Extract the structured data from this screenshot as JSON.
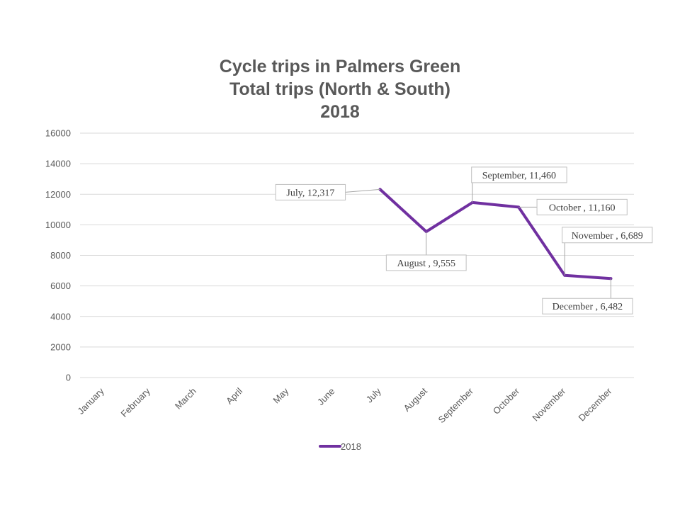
{
  "title_lines": [
    "Cycle trips in Palmers Green",
    "Total trips (North & South)",
    "2018"
  ],
  "chart_data": {
    "type": "line",
    "title": "Cycle trips in Palmers Green Total trips (North & South) 2018",
    "categories": [
      "January",
      "February",
      "March",
      "April",
      "May",
      "June",
      "July",
      "August",
      "September",
      "October",
      "November",
      "December"
    ],
    "series": [
      {
        "name": "2018",
        "color": "#7030a0",
        "values": [
          null,
          null,
          null,
          null,
          null,
          null,
          12317,
          9555,
          11460,
          11160,
          6689,
          6482
        ]
      }
    ],
    "data_labels": [
      "July, 12,317",
      "August , 9,555",
      "September, 11,460",
      "October , 11,160",
      "November , 6,689",
      "December , 6,482"
    ],
    "y_ticks": [
      "0",
      "2000",
      "4000",
      "6000",
      "8000",
      "10000",
      "12000",
      "14000",
      "16000"
    ],
    "ylim": [
      0,
      16000
    ],
    "grid": true,
    "legend_position": "bottom"
  }
}
